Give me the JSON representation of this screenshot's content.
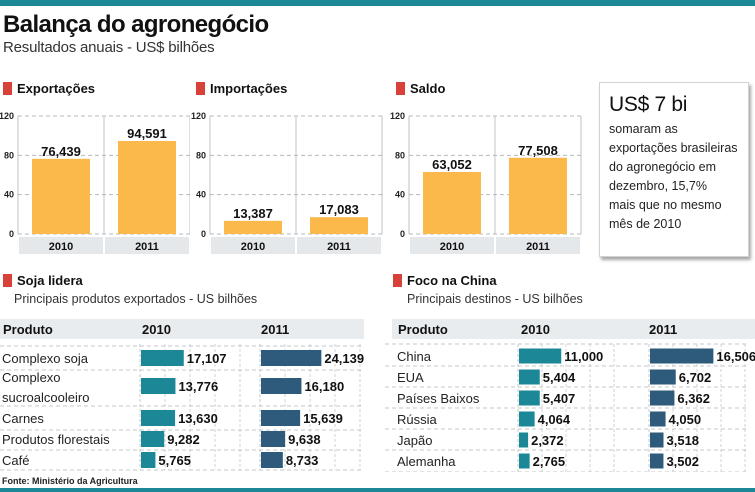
{
  "header": {
    "title": "Balança do agronegócio",
    "subtitle": "Resultados anuais - US$ bilhões"
  },
  "callout": {
    "headline": "US$ 7 bi",
    "lines": [
      "somaram as",
      "exportações brasileiras",
      "do agronegócio em",
      "dezembro, 15,7%",
      "mais que no mesmo",
      "mês de 2010"
    ]
  },
  "source": "Fonte: Ministério da Agricultura",
  "colors": {
    "accent_bar": "#1b8797",
    "legend_square": "#d8403a",
    "bar_orange": "#fbb84b",
    "bar_2010": "#1b8797",
    "bar_2011": "#2e5a7b",
    "header_bg": "#e9ecee"
  },
  "chart_data": [
    {
      "type": "bar",
      "title": "Exportações",
      "categories": [
        "2010",
        "2011"
      ],
      "values": [
        76.439,
        94.591
      ],
      "labels": [
        "76,439",
        "94,591"
      ],
      "yticks": [
        "0",
        "40",
        "80",
        "120"
      ],
      "ylim": [
        0,
        120
      ],
      "grid": true
    },
    {
      "type": "bar",
      "title": "Importações",
      "categories": [
        "2010",
        "2011"
      ],
      "values": [
        13.387,
        17.083
      ],
      "labels": [
        "13,387",
        "17,083"
      ],
      "yticks": [
        "0",
        "40",
        "80",
        "120"
      ],
      "ylim": [
        0,
        120
      ],
      "grid": true
    },
    {
      "type": "bar",
      "title": "Saldo",
      "categories": [
        "2010",
        "2011"
      ],
      "values": [
        63.052,
        77.508
      ],
      "labels": [
        "63,052",
        "77,508"
      ],
      "yticks": [
        "0",
        "40",
        "80",
        "120"
      ],
      "ylim": [
        0,
        120
      ],
      "grid": true
    },
    {
      "type": "bar",
      "orientation": "horizontal",
      "title": "Soja lidera",
      "subtitle": "Principais produtos exportados - US bilhões",
      "header": [
        "Produto",
        "2010",
        "2011"
      ],
      "categories": [
        "Complexo soja",
        "Complexo sucroalcooleiro",
        "Carnes",
        "Produtos florestais",
        "Café"
      ],
      "category_lines": [
        [
          "Complexo soja"
        ],
        [
          "Complexo",
          "sucroalcooleiro"
        ],
        [
          "Carnes"
        ],
        [
          "Produtos florestais"
        ],
        [
          "Café"
        ]
      ],
      "series": [
        {
          "name": "2010",
          "values": [
            17.107,
            13.776,
            13.63,
            9.282,
            5.765
          ],
          "labels": [
            "17,107",
            "13,776",
            "13,630",
            "9,282",
            "5,765"
          ]
        },
        {
          "name": "2011",
          "values": [
            24.139,
            16.18,
            15.639,
            9.638,
            8.733
          ],
          "labels": [
            "24,139",
            "16,180",
            "15,639",
            "9,638",
            "8,733"
          ]
        }
      ],
      "xlim": [
        0,
        40
      ],
      "grid": true
    },
    {
      "type": "bar",
      "orientation": "horizontal",
      "title": "Foco na China",
      "subtitle": "Principais destinos - US bilhões",
      "header": [
        "Produto",
        "2010",
        "2011"
      ],
      "categories": [
        "China",
        "EUA",
        "Países Baixos",
        "Rússia",
        "Japão",
        "Alemanha"
      ],
      "category_lines": [
        [
          "China"
        ],
        [
          "EUA"
        ],
        [
          "Países Baixos"
        ],
        [
          "Rússia"
        ],
        [
          "Japão"
        ],
        [
          "Alemanha"
        ]
      ],
      "series": [
        {
          "name": "2010",
          "values": [
            11.0,
            5.404,
            5.407,
            4.064,
            2.372,
            2.765
          ],
          "labels": [
            "11,000",
            "5,404",
            "5,407",
            "4,064",
            "2,372",
            "2,765"
          ]
        },
        {
          "name": "2011",
          "values": [
            16.506,
            6.702,
            6.362,
            4.05,
            3.518,
            3.502
          ],
          "labels": [
            "16,506",
            "6,702",
            "6,362",
            "4,050",
            "3,518",
            "3,502"
          ]
        }
      ],
      "xlim": [
        0,
        25
      ],
      "grid": true
    }
  ]
}
